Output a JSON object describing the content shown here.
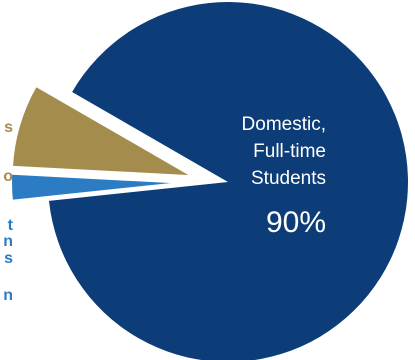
{
  "chart_data": {
    "type": "pie",
    "slices": [
      {
        "label_lines": [
          "Domestic,",
          "Full-time",
          "Students"
        ],
        "value": 90,
        "value_label": "90%",
        "color": "#0d3d78"
      },
      {
        "label_lines": [
          "s",
          "o"
        ],
        "value": 7.5,
        "value_label": "",
        "color": "#a48c4c"
      },
      {
        "label_lines": [
          "t",
          "n",
          "s",
          "n"
        ],
        "value": 2.5,
        "value_label": "",
        "color": "#2b7cc2"
      }
    ],
    "exploded_outline_color": "#ffffff"
  }
}
